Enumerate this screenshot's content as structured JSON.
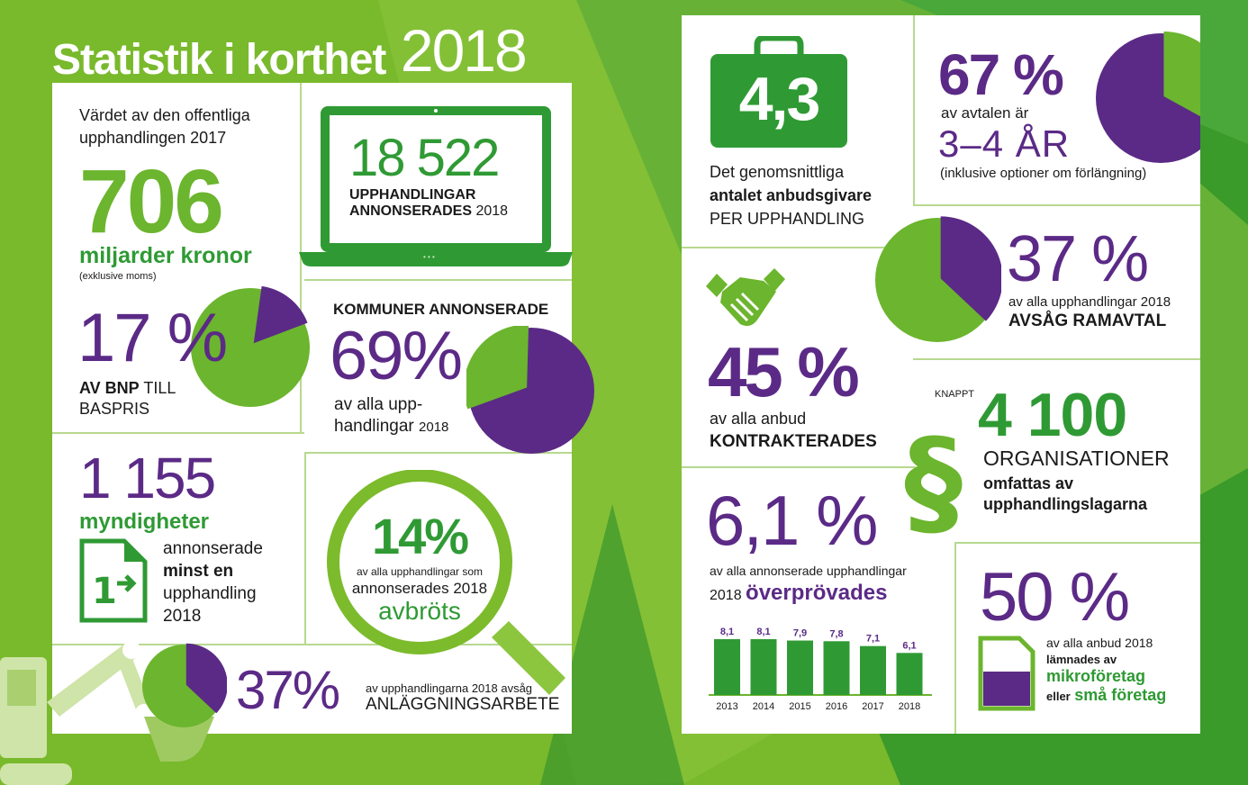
{
  "title": {
    "text": "Statistik i korthet",
    "year": "2018"
  },
  "left": {
    "value": {
      "intro": "Värdet av den offentliga upphandlingen 2017",
      "number": "706",
      "unit": "miljarder kronor",
      "note": "(exklusive moms)"
    },
    "laptop": {
      "number": "18 522",
      "line1": "UPPHANDLINGAR",
      "line2": "ANNONSERADES",
      "year": "2018",
      "dots": "• • •"
    },
    "bnp": {
      "percent": "17 %",
      "line1_bold": "AV BNP",
      "line1_rest": "TILL",
      "line2": "BASPRIS",
      "share": 0.17
    },
    "kommuner": {
      "heading": "KOMMUNER ANNONSERADE",
      "percent": "69%",
      "line1": "av alla upp-",
      "line2": "handlingar",
      "year": "2018",
      "share": 0.69
    },
    "myndigheter": {
      "number": "1 155",
      "label": "myndigheter",
      "line1": "annonserade",
      "line2": "minst en",
      "line3": "upphandling",
      "line4": "2018",
      "doc_icon_text": "1"
    },
    "avbrot": {
      "percent": "14%",
      "line1": "av alla upphandlingar  som",
      "line2": "annonserades 2018",
      "word": "avbröts"
    },
    "anlaggning": {
      "percent": "37%",
      "line1": "av upphandlingarna 2018 avsåg",
      "line2": "ANLÄGGNINGSARBETE",
      "share": 0.37
    }
  },
  "right": {
    "anbudsgivare": {
      "number": "4,3",
      "line1": "Det genomsnittliga",
      "line2": "antalet anbudsgivare",
      "line3": "PER UPPHANDLING"
    },
    "avtal": {
      "percent": "67 %",
      "line1": "av avtalen är",
      "line2": "3–4 ÅR",
      "line3": "(inklusive optioner om förlängning)",
      "share": 0.67
    },
    "ramavtal": {
      "percent": "37 %",
      "line1": "av alla upphandlingar 2018",
      "line2": "AVSÅG RAMAVTAL",
      "share": 0.37
    },
    "kontrakt": {
      "percent": "45 %",
      "line1": "av alla anbud",
      "line2": "KONTRAKTERADES"
    },
    "organisationer": {
      "prefix": "KNAPPT",
      "number": "4 100",
      "line1": "ORGANISATIONER",
      "line2": "omfattas av",
      "line3": "upphandlingslagarna",
      "symbol": "§"
    },
    "overprovning": {
      "percent": "6,1 %",
      "line1": "av alla annonserade upphandlingar",
      "year": "2018",
      "word": "överprövades",
      "chart_data": {
        "type": "bar",
        "categories": [
          "2013",
          "2014",
          "2015",
          "2016",
          "2017",
          "2018"
        ],
        "values": [
          8.1,
          8.1,
          7.9,
          7.8,
          7.1,
          6.1
        ],
        "labels": [
          "8,1",
          "8,1",
          "7,9",
          "7,8",
          "7,1",
          "6,1"
        ],
        "title": "",
        "xlabel": "",
        "ylabel": "",
        "ylim": [
          0,
          8.1
        ],
        "grid": false
      }
    },
    "smaforetag": {
      "percent": "50 %",
      "line1": "av alla anbud 2018",
      "line2": "lämnades av",
      "word1": "mikroföretag",
      "line3a": "eller",
      "word2": "små företag"
    }
  },
  "colors": {
    "bg_green": "#3a9a2a",
    "light_green": "#7cbb2c",
    "green": "#6cb52e",
    "dark_green": "#2f9a34",
    "purple": "#5b2a86",
    "white": "#ffffff"
  }
}
